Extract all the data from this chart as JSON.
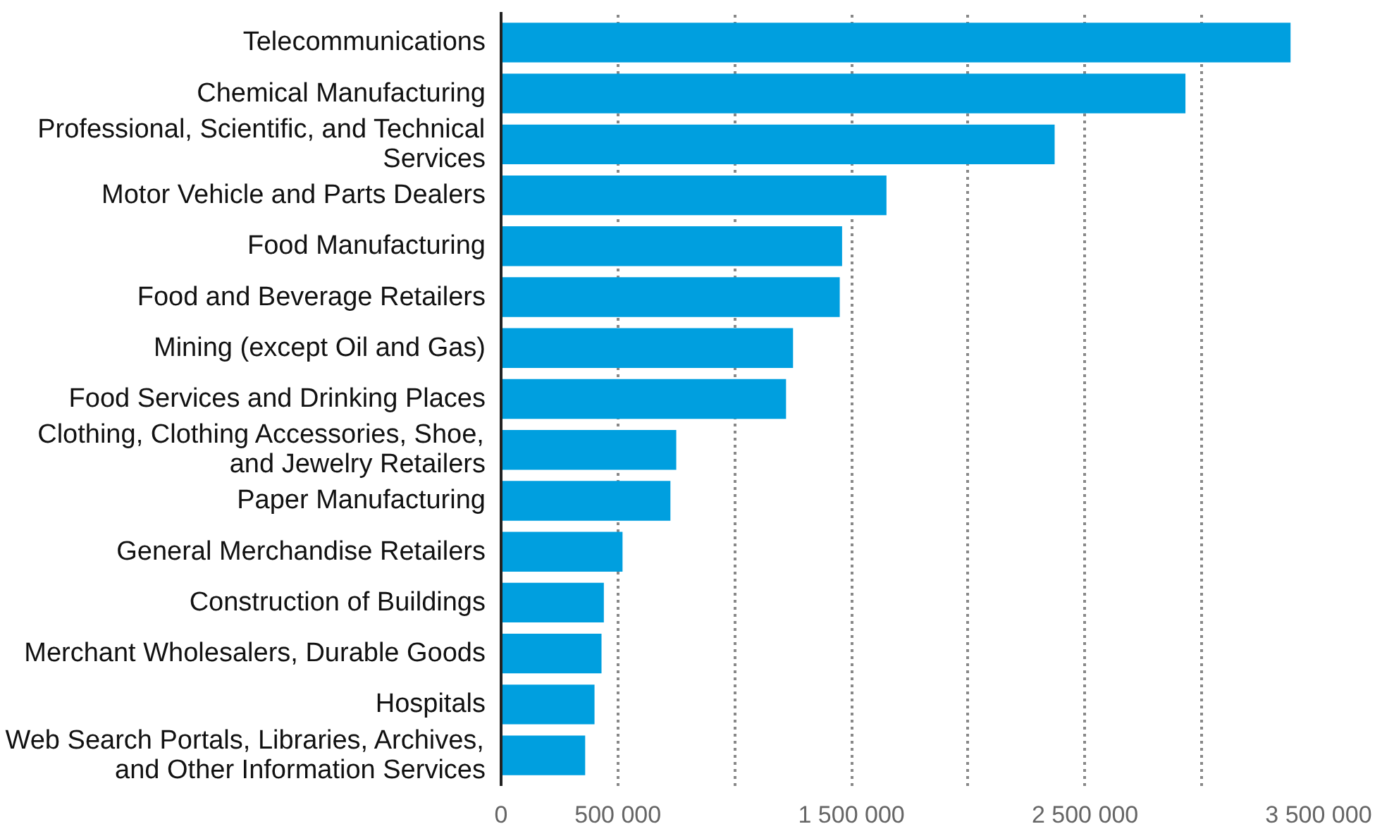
{
  "chart_data": {
    "type": "bar",
    "orientation": "horizontal",
    "categories": [
      "Telecommunications",
      "Chemical Manufacturing",
      "Professional, Scientific, and Technical\nServices",
      "Motor Vehicle and Parts Dealers",
      "Food Manufacturing",
      "Food and Beverage Retailers",
      "Mining (except Oil and Gas)",
      "Food Services and Drinking Places",
      "Clothing, Clothing Accessories, Shoe,\nand Jewelry Retailers",
      "Paper Manufacturing",
      "General Merchandise Retailers",
      "Construction of Buildings",
      "Merchant Wholesalers, Durable Goods",
      "Hospitals",
      "Web Search Portals, Libraries, Archives,\nand Other Information Services"
    ],
    "values": [
      3380000,
      2930000,
      2370000,
      1650000,
      1460000,
      1450000,
      1250000,
      1220000,
      750000,
      725000,
      520000,
      440000,
      430000,
      400000,
      360000
    ],
    "color": "#009fdf",
    "xlim": [
      0,
      3500000
    ],
    "xticks": [
      0,
      {
        "value": 500000,
        "label": "500 000"
      },
      {
        "value": 1000000,
        "label": null
      },
      {
        "value": 1500000,
        "label": "1 500 000"
      },
      {
        "value": 2000000,
        "label": null
      },
      {
        "value": 2500000,
        "label": "2 500 000"
      },
      {
        "value": 3000000,
        "label": null
      },
      {
        "value": 3500000,
        "label": "3 500 000"
      }
    ],
    "grid": "x"
  }
}
